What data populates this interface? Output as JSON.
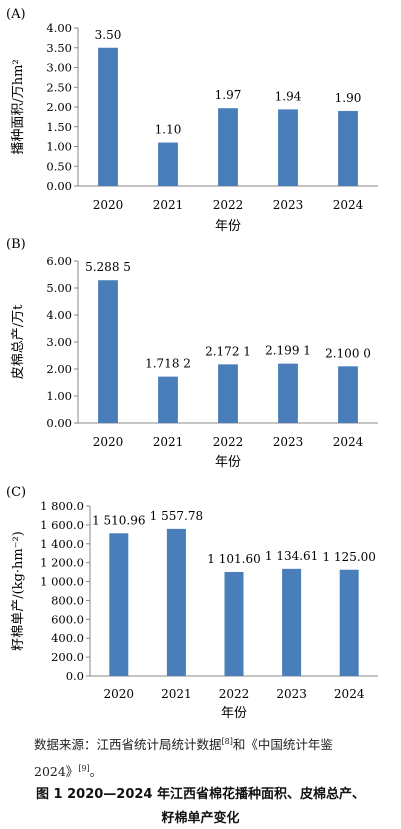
{
  "chart_data": [
    {
      "type": "bar",
      "panel": "(A)",
      "categories": [
        "2020",
        "2021",
        "2022",
        "2023",
        "2024"
      ],
      "values": [
        3.5,
        1.1,
        1.97,
        1.94,
        1.9
      ],
      "value_labels": [
        "3.50",
        "1.10",
        "1.97",
        "1.94",
        "1.90"
      ],
      "ylabel": "播种面积/万hm²",
      "xlabel": "年份",
      "ylim": [
        0,
        4
      ],
      "yticks": [
        "0.00",
        "0.50",
        "1.00",
        "1.50",
        "2.00",
        "2.50",
        "3.00",
        "3.50",
        "4.00"
      ],
      "color": "#4a7ebb",
      "grid": false
    },
    {
      "type": "bar",
      "panel": "(B)",
      "categories": [
        "2020",
        "2021",
        "2022",
        "2023",
        "2024"
      ],
      "values": [
        5.2885,
        1.7182,
        2.1721,
        2.1991,
        2.1
      ],
      "value_labels": [
        "5.288 5",
        "1.718 2",
        "2.172 1",
        "2.199 1",
        "2.100 0"
      ],
      "ylabel": "皮棉总产/万t",
      "xlabel": "年份",
      "ylim": [
        0,
        6
      ],
      "yticks": [
        "0.00",
        "1.00",
        "2.00",
        "3.00",
        "4.00",
        "5.00",
        "6.00"
      ],
      "color": "#4a7ebb",
      "grid": false
    },
    {
      "type": "bar",
      "panel": "(C)",
      "categories": [
        "2020",
        "2021",
        "2022",
        "2023",
        "2024"
      ],
      "values": [
        1510.96,
        1557.78,
        1101.6,
        1134.61,
        1125.0
      ],
      "value_labels": [
        "1 510.96",
        "1 557.78",
        "1 101.60",
        "1 134.61",
        "1 125.00"
      ],
      "ylabel": "籽棉单产/(kg·hm⁻²)",
      "xlabel": "年份",
      "ylim": [
        0,
        1800
      ],
      "yticks": [
        "0.0",
        "200.0",
        "400.0",
        "600.0",
        "800.0",
        "1 000.0",
        "1 200.0",
        "1 400.0",
        "1 600.0",
        "1 800.0"
      ],
      "color": "#4a7ebb",
      "grid": false
    }
  ],
  "source_note": {
    "line1_a": "数据来源：江西省统计局统计数据",
    "ref1": "[8]",
    "line1_b": "和《中国统计年鉴",
    "line2": "2024》",
    "ref2": "[9]",
    "line2_end": "。"
  },
  "figure_caption": {
    "line1": "图 1   2020—2024 年江西省棉花播种面积、皮棉总产、",
    "line2": "籽棉单产变化"
  }
}
